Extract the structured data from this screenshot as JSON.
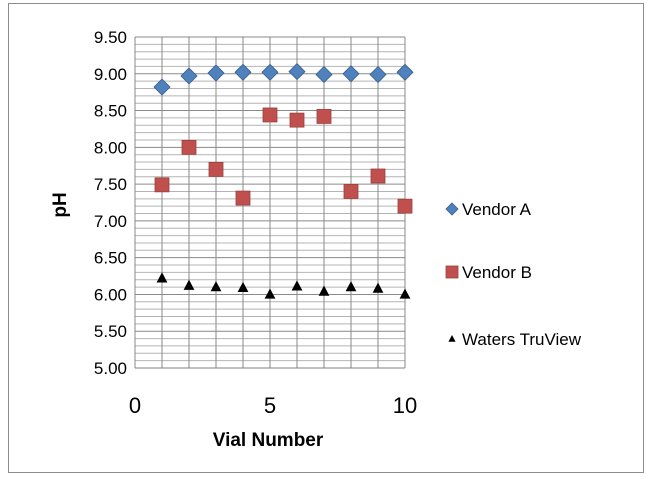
{
  "chart_data": {
    "type": "scatter",
    "title": "",
    "xlabel": "Vial Number",
    "ylabel": "pH",
    "xlim": [
      0,
      10
    ],
    "ylim": [
      5.0,
      9.5
    ],
    "x_ticks": [
      "0",
      "5",
      "10"
    ],
    "x_tick_values": [
      0,
      5,
      10
    ],
    "y_ticks": [
      "5.00",
      "5.50",
      "6.00",
      "6.50",
      "7.00",
      "7.50",
      "8.00",
      "8.50",
      "9.00",
      "9.50"
    ],
    "y_tick_values": [
      5.0,
      5.5,
      6.0,
      6.5,
      7.0,
      7.5,
      8.0,
      8.5,
      9.0,
      9.5
    ],
    "y_minor_step": 0.1,
    "x_minor_step": 1,
    "grid": true,
    "legend_position": "right",
    "series": [
      {
        "name": "Vendor A",
        "marker": "diamond",
        "color": "#4f81bd",
        "x": [
          1,
          2,
          3,
          4,
          5,
          6,
          7,
          8,
          9,
          10
        ],
        "y": [
          8.82,
          8.97,
          9.01,
          9.02,
          9.02,
          9.03,
          8.99,
          9.0,
          8.99,
          9.02
        ]
      },
      {
        "name": "Vendor B",
        "marker": "square",
        "color": "#c0504d",
        "x": [
          1,
          2,
          3,
          4,
          5,
          6,
          7,
          8,
          9,
          10
        ],
        "y": [
          7.49,
          8.0,
          7.7,
          7.31,
          8.44,
          8.37,
          8.42,
          7.4,
          7.61,
          7.2
        ]
      },
      {
        "name": "Waters TruView",
        "marker": "triangle",
        "color": "#000000",
        "x": [
          1,
          2,
          3,
          4,
          5,
          6,
          7,
          8,
          9,
          10
        ],
        "y": [
          6.22,
          6.12,
          6.1,
          6.09,
          6.0,
          6.11,
          6.04,
          6.1,
          6.08,
          6.0
        ]
      }
    ]
  }
}
